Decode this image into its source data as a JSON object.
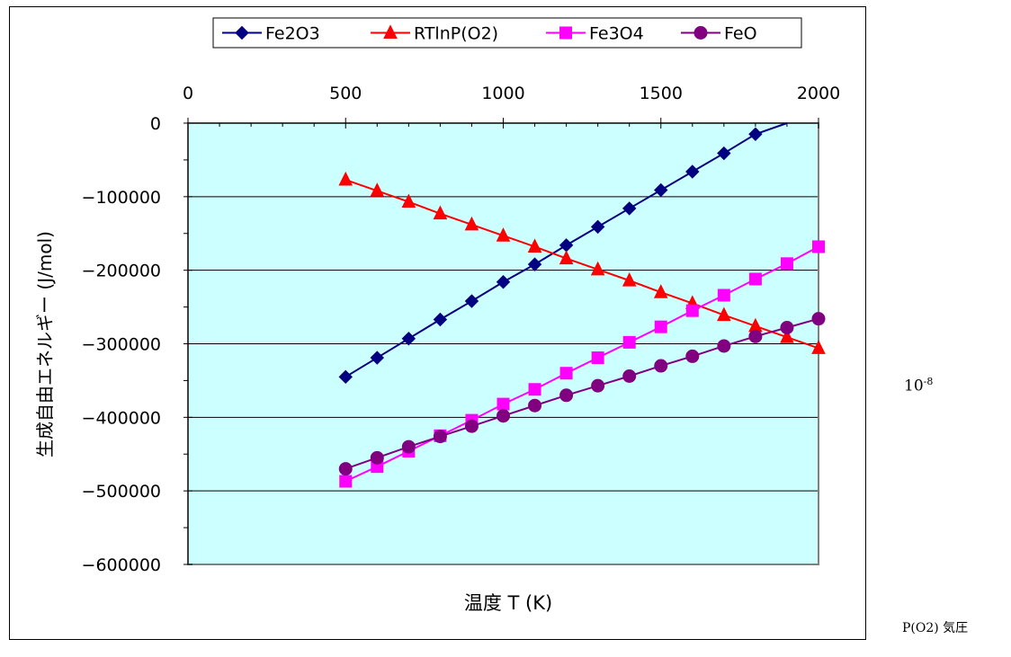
{
  "chart_data": {
    "type": "line",
    "xlabel": "温度 T (K)",
    "ylabel": "生成自由エネルギー (J/mol)",
    "xlim": [
      0,
      2000
    ],
    "ylim": [
      -600000,
      0
    ],
    "x_ticks": [
      "0",
      "500",
      "1000",
      "1500",
      "2000"
    ],
    "y_ticks": [
      "0",
      "-100000",
      "-200000",
      "-300000",
      "-400000",
      "-500000",
      "-600000"
    ],
    "grid": "horizontal",
    "legend_position": "top",
    "plot_background": "#ccffff",
    "x": [
      500,
      600,
      700,
      800,
      900,
      1000,
      1100,
      1200,
      1300,
      1400,
      1500,
      1600,
      1700,
      1800
    ],
    "series": [
      {
        "name": "Fe2O3",
        "marker": "diamond",
        "color": "#000080",
        "x": [
          500,
          600,
          700,
          800,
          900,
          1000,
          1100,
          1200,
          1300,
          1400,
          1500,
          1600,
          1700,
          1800,
          1900
        ],
        "values": [
          -345000,
          -319000,
          -293000,
          -267000,
          -242000,
          -216000,
          -192000,
          -166000,
          -141000,
          -116000,
          -91000,
          -66000,
          -41000,
          -15000,
          0
        ]
      },
      {
        "name": "RTlnP(O2)",
        "marker": "triangle",
        "color": "#ff0000",
        "x": [
          500,
          600,
          700,
          800,
          900,
          1000,
          1100,
          1200,
          1300,
          1400,
          1500,
          1600,
          1700,
          1800,
          1900,
          2000
        ],
        "values": [
          -77000,
          -92000,
          -107000,
          -123000,
          -138000,
          -153000,
          -168000,
          -184000,
          -199000,
          -214000,
          -230000,
          -245000,
          -261000,
          -276000,
          -291000,
          -306000
        ]
      },
      {
        "name": "Fe3O4",
        "marker": "square",
        "color": "#ff00ff",
        "x": [
          500,
          600,
          700,
          800,
          900,
          1000,
          1100,
          1200,
          1300,
          1400,
          1500,
          1600,
          1700,
          1800,
          1900,
          2000
        ],
        "values": [
          -487000,
          -467000,
          -446000,
          -425000,
          -404000,
          -382000,
          -362000,
          -340000,
          -319000,
          -298000,
          -277000,
          -255000,
          -234000,
          -212000,
          -191000,
          -168000
        ]
      },
      {
        "name": "FeO",
        "marker": "circle",
        "color": "#800080",
        "x": [
          500,
          600,
          700,
          800,
          900,
          1000,
          1100,
          1200,
          1300,
          1400,
          1500,
          1600,
          1700,
          1800,
          1900,
          2000
        ],
        "values": [
          -470000,
          -455000,
          -440000,
          -426000,
          -412000,
          -398000,
          -384000,
          -370000,
          -357000,
          -344000,
          -330000,
          -317000,
          -303000,
          -290000,
          -278000,
          -266000
        ]
      }
    ]
  },
  "side": {
    "pressure_base": "10",
    "pressure_exp": "-8",
    "pressure_label": "P(O2) 気圧"
  }
}
